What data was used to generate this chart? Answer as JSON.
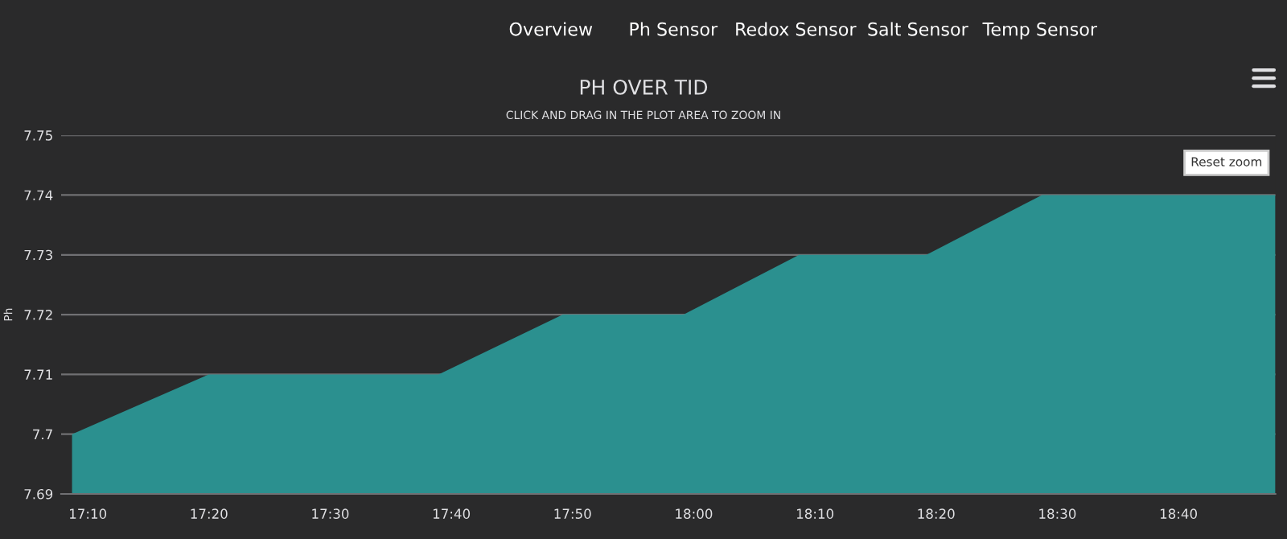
{
  "chart_data": {
    "type": "area",
    "title": "PH OVER TID",
    "subtitle": "CLICK AND DRAG IN THE PLOT AREA TO ZOOM IN",
    "ylabel": "Ph",
    "annotations": [
      "Overview",
      "Ph Sensor",
      "Redox Sensor",
      "Salt Sensor",
      "Temp Sensor",
      "Reset zoom"
    ],
    "x": [
      17.145,
      17.333,
      17.649,
      17.82,
      17.986,
      18.145,
      18.32,
      18.479,
      18.8
    ],
    "series": [
      {
        "color": "#2b908f",
        "values": [
          7.7,
          7.71,
          7.71,
          7.72,
          7.72,
          7.73,
          7.73,
          7.74,
          7.74
        ]
      }
    ],
    "xlim": [
      17.13,
      18.8
    ],
    "xticks": [
      {
        "value": 17.1667,
        "label": "17:10"
      },
      {
        "value": 17.3333,
        "label": "17:20"
      },
      {
        "value": 17.5,
        "label": "17:30"
      },
      {
        "value": 17.6667,
        "label": "17:40"
      },
      {
        "value": 17.8333,
        "label": "17:50"
      },
      {
        "value": 18.0,
        "label": "18:00"
      },
      {
        "value": 18.1667,
        "label": "18:10"
      },
      {
        "value": 18.3333,
        "label": "18:20"
      },
      {
        "value": 18.5,
        "label": "18:30"
      },
      {
        "value": 18.6667,
        "label": "18:40"
      }
    ],
    "ylim": [
      7.69,
      7.75
    ],
    "yticks": [
      7.69,
      7.7,
      7.71,
      7.72,
      7.73,
      7.74,
      7.75
    ],
    "grid": "y",
    "legend": false
  }
}
